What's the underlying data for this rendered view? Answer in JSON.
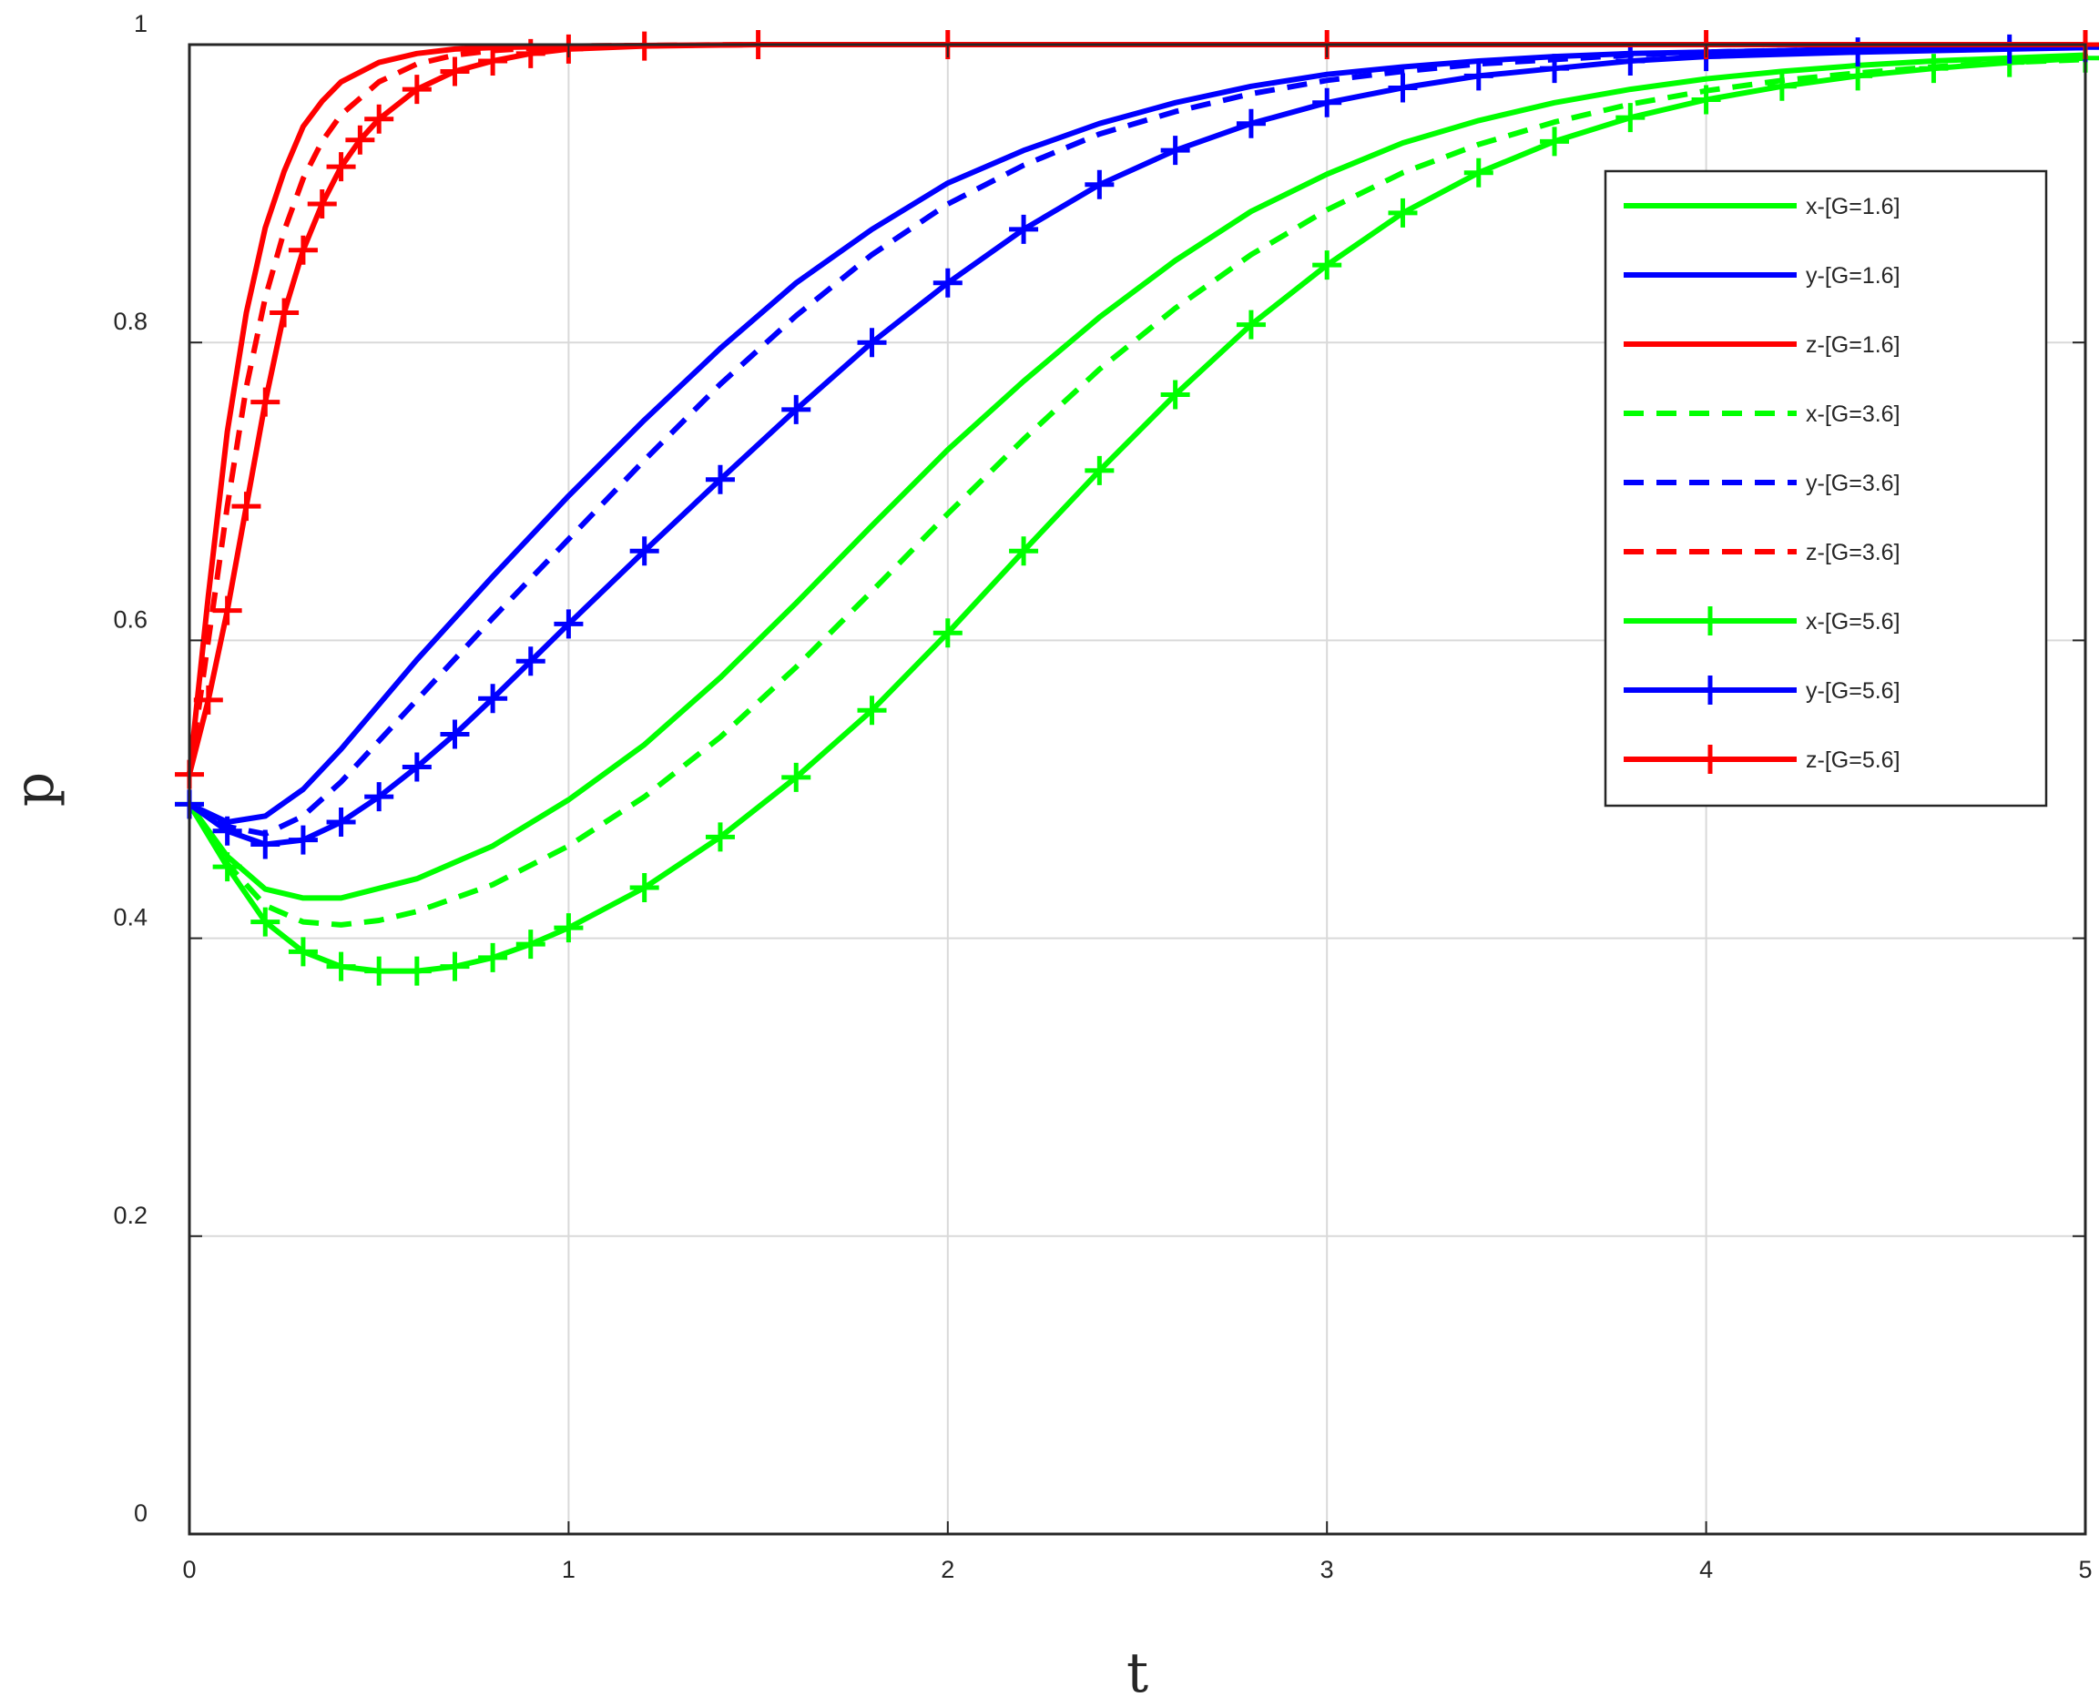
{
  "chart_data": {
    "type": "line",
    "title": "",
    "xlabel": "t",
    "ylabel": "p",
    "xlim": [
      0,
      5
    ],
    "ylim": [
      0,
      1
    ],
    "xticks": [
      0,
      1,
      2,
      3,
      4,
      5
    ],
    "yticks": [
      0,
      0.2,
      0.4,
      0.6,
      0.8,
      1
    ],
    "xtick_labels": [
      "0",
      "1",
      "2",
      "3",
      "4",
      "5"
    ],
    "ytick_labels": [
      "0",
      "0.2",
      "0.4",
      "0.6",
      "0.8",
      "1"
    ],
    "grid": true,
    "legend_position": "top-right",
    "series": [
      {
        "name": "x-[G=1.6]",
        "color": "#00ff00",
        "style": "solid",
        "marker": "none",
        "x": [
          0,
          0.1,
          0.2,
          0.3,
          0.4,
          0.6,
          0.8,
          1.0,
          1.2,
          1.4,
          1.6,
          1.8,
          2.0,
          2.2,
          2.4,
          2.6,
          2.8,
          3.0,
          3.2,
          3.4,
          3.6,
          3.8,
          4.0,
          4.2,
          4.4,
          4.6,
          4.8,
          5.0
        ],
        "y": [
          0.49,
          0.455,
          0.433,
          0.427,
          0.427,
          0.44,
          0.462,
          0.493,
          0.53,
          0.575,
          0.625,
          0.677,
          0.728,
          0.774,
          0.817,
          0.855,
          0.888,
          0.913,
          0.934,
          0.949,
          0.961,
          0.97,
          0.977,
          0.982,
          0.986,
          0.989,
          0.991,
          0.993
        ]
      },
      {
        "name": "y-[G=1.6]",
        "color": "#0000ff",
        "style": "solid",
        "marker": "none",
        "x": [
          0,
          0.1,
          0.2,
          0.3,
          0.4,
          0.6,
          0.8,
          1.0,
          1.2,
          1.4,
          1.6,
          1.8,
          2.0,
          2.2,
          2.4,
          2.6,
          2.8,
          3.0,
          3.2,
          3.4,
          3.6,
          3.8,
          4.0,
          4.4,
          4.8,
          5.0
        ],
        "y": [
          0.49,
          0.478,
          0.482,
          0.5,
          0.527,
          0.587,
          0.643,
          0.697,
          0.748,
          0.796,
          0.84,
          0.876,
          0.907,
          0.929,
          0.947,
          0.961,
          0.972,
          0.98,
          0.985,
          0.989,
          0.992,
          0.994,
          0.995,
          0.997,
          0.998,
          0.998
        ]
      },
      {
        "name": "z-[G=1.6]",
        "color": "#ff0000",
        "style": "solid",
        "marker": "none",
        "x": [
          0,
          0.05,
          0.1,
          0.15,
          0.2,
          0.25,
          0.3,
          0.35,
          0.4,
          0.5,
          0.6,
          0.7,
          0.8,
          1.0,
          1.5,
          2.0,
          3.0,
          4.0,
          5.0
        ],
        "y": [
          0.51,
          0.63,
          0.74,
          0.82,
          0.877,
          0.915,
          0.945,
          0.962,
          0.975,
          0.988,
          0.994,
          0.997,
          0.998,
          0.999,
          1.0,
          1.0,
          1.0,
          1.0,
          1.0
        ]
      },
      {
        "name": "x-[G=3.6]",
        "color": "#00ff00",
        "style": "dashed",
        "marker": "none",
        "x": [
          0,
          0.1,
          0.2,
          0.3,
          0.4,
          0.5,
          0.6,
          0.8,
          1.0,
          1.2,
          1.4,
          1.6,
          1.8,
          2.0,
          2.2,
          2.4,
          2.6,
          2.8,
          3.0,
          3.2,
          3.4,
          3.6,
          3.8,
          4.0,
          4.2,
          4.4,
          4.6,
          4.8,
          5.0
        ],
        "y": [
          0.49,
          0.45,
          0.422,
          0.411,
          0.409,
          0.412,
          0.418,
          0.436,
          0.462,
          0.495,
          0.535,
          0.582,
          0.633,
          0.685,
          0.735,
          0.782,
          0.823,
          0.859,
          0.889,
          0.914,
          0.933,
          0.948,
          0.96,
          0.969,
          0.976,
          0.981,
          0.985,
          0.988,
          0.99
        ]
      },
      {
        "name": "y-[G=3.6]",
        "color": "#0000ff",
        "style": "dashed",
        "marker": "none",
        "x": [
          0,
          0.1,
          0.2,
          0.3,
          0.4,
          0.6,
          0.8,
          1.0,
          1.2,
          1.4,
          1.6,
          1.8,
          2.0,
          2.2,
          2.4,
          2.6,
          2.8,
          3.0,
          3.2,
          3.4,
          3.6,
          3.8,
          4.0,
          4.4,
          4.8,
          5.0
        ],
        "y": [
          0.49,
          0.475,
          0.47,
          0.482,
          0.505,
          0.56,
          0.615,
          0.668,
          0.721,
          0.772,
          0.818,
          0.859,
          0.893,
          0.919,
          0.94,
          0.955,
          0.967,
          0.976,
          0.982,
          0.987,
          0.99,
          0.993,
          0.995,
          0.997,
          0.998,
          0.998
        ]
      },
      {
        "name": "z-[G=3.6]",
        "color": "#ff0000",
        "style": "dashed",
        "marker": "none",
        "x": [
          0,
          0.05,
          0.1,
          0.15,
          0.2,
          0.25,
          0.3,
          0.35,
          0.4,
          0.5,
          0.6,
          0.7,
          0.8,
          1.0,
          1.5,
          2.0,
          3.0,
          4.0,
          5.0
        ],
        "y": [
          0.51,
          0.6,
          0.69,
          0.77,
          0.83,
          0.875,
          0.91,
          0.935,
          0.953,
          0.975,
          0.987,
          0.993,
          0.996,
          0.999,
          1.0,
          1.0,
          1.0,
          1.0,
          1.0
        ]
      },
      {
        "name": "x-[G=5.6]",
        "color": "#00ff00",
        "style": "solid",
        "marker": "plus",
        "x": [
          0,
          0.1,
          0.2,
          0.3,
          0.4,
          0.5,
          0.6,
          0.7,
          0.8,
          0.9,
          1.0,
          1.2,
          1.4,
          1.6,
          1.8,
          2.0,
          2.2,
          2.4,
          2.6,
          2.8,
          3.0,
          3.2,
          3.4,
          3.6,
          3.8,
          4.0,
          4.2,
          4.4,
          4.6,
          4.8,
          5.0
        ],
        "y": [
          0.49,
          0.448,
          0.411,
          0.391,
          0.381,
          0.378,
          0.378,
          0.381,
          0.387,
          0.396,
          0.407,
          0.434,
          0.468,
          0.508,
          0.553,
          0.605,
          0.66,
          0.714,
          0.765,
          0.812,
          0.852,
          0.887,
          0.914,
          0.935,
          0.951,
          0.963,
          0.972,
          0.979,
          0.984,
          0.988,
          0.991
        ]
      },
      {
        "name": "y-[G=5.6]",
        "color": "#0000ff",
        "style": "solid",
        "marker": "plus",
        "x": [
          0,
          0.1,
          0.2,
          0.3,
          0.4,
          0.5,
          0.6,
          0.7,
          0.8,
          0.9,
          1.0,
          1.2,
          1.4,
          1.6,
          1.8,
          2.0,
          2.2,
          2.4,
          2.6,
          2.8,
          3.0,
          3.2,
          3.4,
          3.6,
          3.8,
          4.0,
          4.4,
          4.8,
          5.0
        ],
        "y": [
          0.49,
          0.472,
          0.463,
          0.466,
          0.478,
          0.495,
          0.515,
          0.537,
          0.561,
          0.586,
          0.611,
          0.66,
          0.708,
          0.755,
          0.8,
          0.84,
          0.876,
          0.906,
          0.929,
          0.947,
          0.961,
          0.971,
          0.979,
          0.984,
          0.989,
          0.992,
          0.995,
          0.997,
          0.998
        ]
      },
      {
        "name": "z-[G=5.6]",
        "color": "#ff0000",
        "style": "solid",
        "marker": "plus",
        "x": [
          0,
          0.05,
          0.1,
          0.15,
          0.2,
          0.25,
          0.3,
          0.35,
          0.4,
          0.45,
          0.5,
          0.6,
          0.7,
          0.8,
          0.9,
          1.0,
          1.2,
          1.5,
          2.0,
          3.0,
          4.0,
          5.0
        ],
        "y": [
          0.51,
          0.56,
          0.62,
          0.69,
          0.76,
          0.82,
          0.862,
          0.893,
          0.918,
          0.936,
          0.95,
          0.97,
          0.982,
          0.989,
          0.994,
          0.997,
          0.999,
          1.0,
          1.0,
          1.0,
          1.0,
          1.0
        ]
      }
    ]
  }
}
